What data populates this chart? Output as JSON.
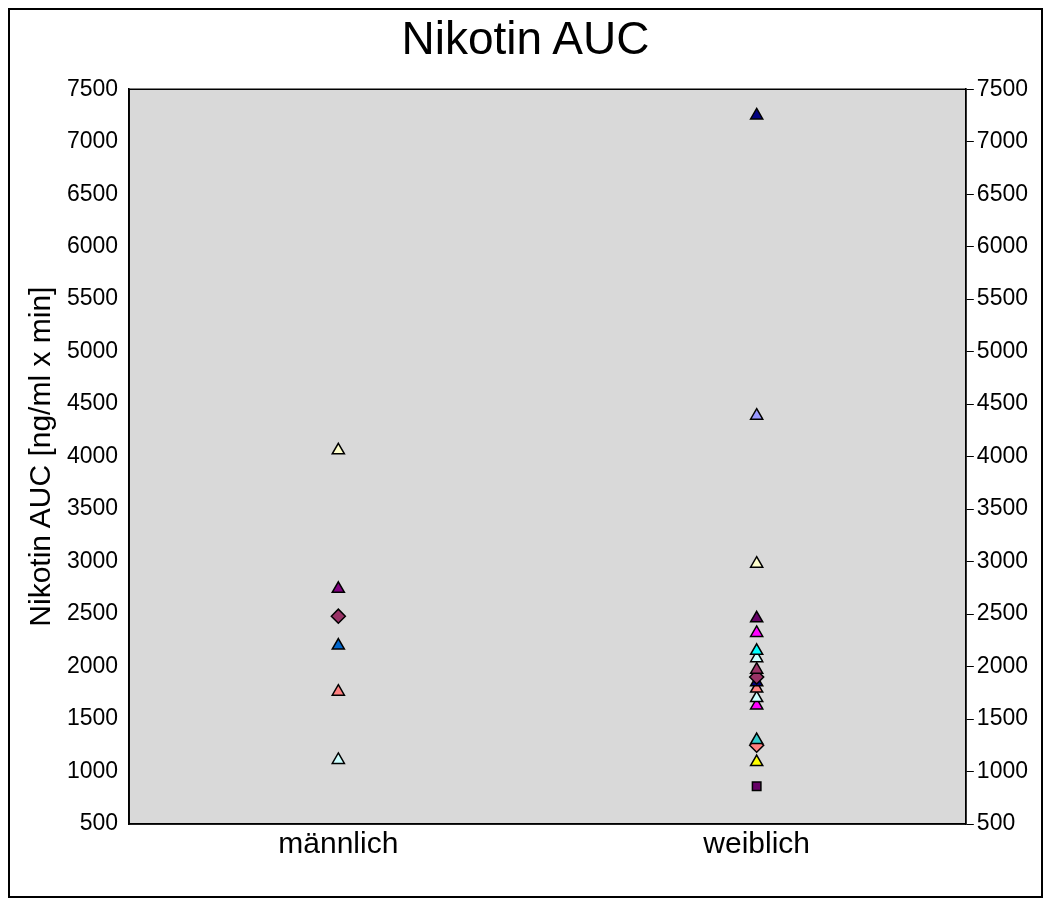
{
  "chart_data": {
    "type": "scatter",
    "title": "Nikotin AUC",
    "ylabel": "Nikotin AUC [ng/ml x min]",
    "categories": [
      "männlich",
      "weiblich"
    ],
    "ylim": [
      500,
      7500
    ],
    "yticks": [
      500,
      1000,
      1500,
      2000,
      2500,
      3000,
      3500,
      4000,
      4500,
      5000,
      5500,
      6000,
      6500,
      7000,
      7500
    ],
    "y2lim": [
      500,
      7500
    ],
    "y2ticks": [
      500,
      1000,
      1500,
      2000,
      2500,
      3000,
      3500,
      4000,
      4500,
      5000,
      5500,
      6000,
      6500,
      7000,
      7500
    ],
    "grid": false,
    "legend": false,
    "series": [
      {
        "color": "#ffffcc",
        "marker": "triangle",
        "x": [
          "männlich"
        ],
        "values": [
          4060
        ]
      },
      {
        "color": "#800080",
        "marker": "triangle",
        "x": [
          "männlich"
        ],
        "values": [
          2740
        ]
      },
      {
        "color": "#993366",
        "marker": "diamond",
        "x": [
          "männlich"
        ],
        "values": [
          2480
        ]
      },
      {
        "color": "#0066cc",
        "marker": "triangle",
        "x": [
          "männlich"
        ],
        "values": [
          2200
        ]
      },
      {
        "color": "#ff8080",
        "marker": "triangle",
        "x": [
          "männlich"
        ],
        "values": [
          1760
        ]
      },
      {
        "color": "#ccffff",
        "marker": "triangle",
        "x": [
          "männlich"
        ],
        "values": [
          1110
        ]
      },
      {
        "color": "#000080",
        "marker": "triangle",
        "x": [
          "weiblich"
        ],
        "values": [
          7250
        ]
      },
      {
        "color": "#9999ff",
        "marker": "triangle",
        "x": [
          "weiblich"
        ],
        "values": [
          4390
        ]
      },
      {
        "color": "#ffffcc",
        "marker": "triangle",
        "x": [
          "weiblich"
        ],
        "values": [
          2980
        ]
      },
      {
        "color": "#660066",
        "marker": "triangle",
        "x": [
          "weiblich"
        ],
        "values": [
          2460
        ]
      },
      {
        "color": "#ff00ff",
        "marker": "triangle",
        "x": [
          "weiblich"
        ],
        "values": [
          2320
        ]
      },
      {
        "color": "#00ffff",
        "marker": "triangle",
        "x": [
          "weiblich"
        ],
        "values": [
          2150
        ]
      },
      {
        "color": "#ccffff",
        "marker": "triangle",
        "x": [
          "weiblich"
        ],
        "values": [
          2080
        ]
      },
      {
        "color": "#993366",
        "marker": "triangle",
        "x": [
          "weiblich"
        ],
        "values": [
          1970
        ]
      },
      {
        "color": "#993366",
        "marker": "diamond",
        "x": [
          "weiblich"
        ],
        "values": [
          1900
        ]
      },
      {
        "color": "#000080",
        "marker": "triangle",
        "x": [
          "weiblich"
        ],
        "values": [
          1850
        ]
      },
      {
        "color": "#ff8080",
        "marker": "triangle",
        "x": [
          "weiblich"
        ],
        "values": [
          1790
        ]
      },
      {
        "color": "#ccffff",
        "marker": "triangle",
        "x": [
          "weiblich"
        ],
        "values": [
          1700
        ]
      },
      {
        "color": "#ff00ff",
        "marker": "triangle",
        "x": [
          "weiblich"
        ],
        "values": [
          1630
        ]
      },
      {
        "color": "#33cccc",
        "marker": "triangle",
        "x": [
          "weiblich"
        ],
        "values": [
          1300
        ]
      },
      {
        "color": "#ff8080",
        "marker": "diamond",
        "x": [
          "weiblich"
        ],
        "values": [
          1250
        ]
      },
      {
        "color": "#ffff00",
        "marker": "triangle",
        "x": [
          "weiblich"
        ],
        "values": [
          1090
        ]
      },
      {
        "color": "#660066",
        "marker": "square",
        "x": [
          "weiblich"
        ],
        "values": [
          860
        ]
      }
    ]
  }
}
